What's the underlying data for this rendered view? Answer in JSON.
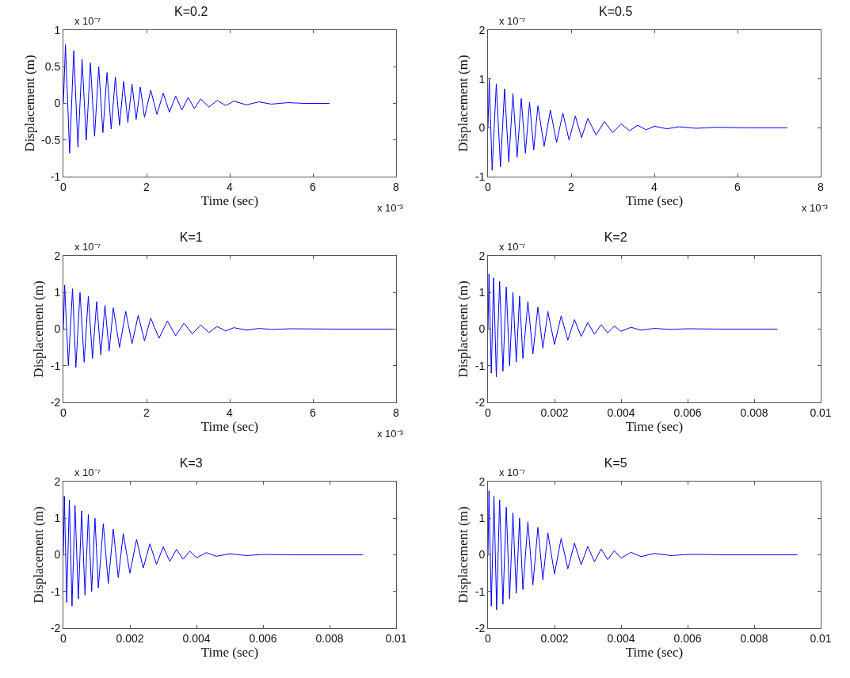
{
  "chart_data": [
    {
      "type": "line",
      "title": "K=0.2",
      "xlabel": "Time (sec)",
      "ylabel": "Displacement (m)",
      "annotations": [
        "x 10⁻⁷",
        "x 10⁻³"
      ],
      "xlim": [
        0,
        8
      ],
      "xticks": [
        0,
        2,
        4,
        6,
        8
      ],
      "ylim": [
        -1,
        1
      ],
      "yticks": [
        -1,
        -0.5,
        0,
        0.5,
        1
      ],
      "x": [
        0,
        0.05,
        0.15,
        0.25,
        0.35,
        0.45,
        0.55,
        0.65,
        0.75,
        0.85,
        0.95,
        1.05,
        1.15,
        1.25,
        1.35,
        1.45,
        1.55,
        1.65,
        1.75,
        1.85,
        1.95,
        2.1,
        2.25,
        2.4,
        2.55,
        2.7,
        2.85,
        3.0,
        3.15,
        3.3,
        3.5,
        3.7,
        3.9,
        4.1,
        4.4,
        4.7,
        5.0,
        5.4,
        5.8,
        6.4
      ],
      "series": [
        {
          "color": "#0000ff",
          "values": [
            0,
            0.8,
            -0.68,
            0.72,
            -0.6,
            0.6,
            -0.5,
            0.55,
            -0.45,
            0.5,
            -0.4,
            0.42,
            -0.35,
            0.36,
            -0.3,
            0.3,
            -0.26,
            0.26,
            -0.22,
            0.22,
            -0.19,
            0.18,
            -0.15,
            0.14,
            -0.12,
            0.1,
            -0.09,
            0.08,
            -0.07,
            0.06,
            -0.05,
            0.04,
            -0.03,
            0.03,
            -0.02,
            0.02,
            -0.01,
            0.01,
            0,
            0
          ]
        }
      ]
    },
    {
      "type": "line",
      "title": "K=0.5",
      "xlabel": "Time (sec)",
      "ylabel": "Displacement (m)",
      "annotations": [
        "x 10⁻⁷",
        "x 10⁻³"
      ],
      "xlim": [
        0,
        8
      ],
      "xticks": [
        0,
        2,
        4,
        6,
        8
      ],
      "ylim": [
        -1,
        2
      ],
      "yticks": [
        -1,
        0,
        1,
        2
      ],
      "x": [
        0,
        0.03,
        0.1,
        0.2,
        0.3,
        0.4,
        0.5,
        0.6,
        0.7,
        0.8,
        0.9,
        1.0,
        1.1,
        1.2,
        1.35,
        1.5,
        1.65,
        1.8,
        1.95,
        2.1,
        2.25,
        2.4,
        2.6,
        2.8,
        3.0,
        3.2,
        3.4,
        3.6,
        3.8,
        4.0,
        4.3,
        4.6,
        5.0,
        5.5,
        6.2,
        7.2
      ],
      "series": [
        {
          "color": "#0000ff",
          "values": [
            0,
            1.0,
            -0.87,
            0.9,
            -0.8,
            0.8,
            -0.7,
            0.7,
            -0.6,
            0.6,
            -0.52,
            0.52,
            -0.45,
            0.45,
            -0.38,
            0.36,
            -0.3,
            0.3,
            -0.25,
            0.24,
            -0.2,
            0.19,
            -0.15,
            0.13,
            -0.1,
            0.08,
            -0.06,
            0.05,
            -0.04,
            0.03,
            -0.02,
            0.02,
            -0.01,
            0.01,
            0,
            0
          ]
        }
      ]
    },
    {
      "type": "line",
      "title": "K=1",
      "xlabel": "Time (sec)",
      "ylabel": "Displacement (m)",
      "annotations": [
        "x 10⁻⁷",
        "x 10⁻³"
      ],
      "xlim": [
        0,
        8
      ],
      "xticks": [
        0,
        2,
        4,
        6,
        8
      ],
      "ylim": [
        -2,
        2
      ],
      "yticks": [
        -2,
        -1,
        0,
        1,
        2
      ],
      "x": [
        0,
        0.03,
        0.12,
        0.22,
        0.3,
        0.4,
        0.5,
        0.6,
        0.7,
        0.8,
        0.9,
        1.0,
        1.1,
        1.2,
        1.35,
        1.5,
        1.65,
        1.8,
        1.95,
        2.1,
        2.3,
        2.5,
        2.7,
        2.9,
        3.1,
        3.3,
        3.5,
        3.7,
        3.9,
        4.1,
        4.4,
        4.7,
        5.0,
        5.5,
        6.5,
        8
      ],
      "series": [
        {
          "color": "#0000ff",
          "values": [
            0,
            1.2,
            -1.0,
            1.1,
            -1.05,
            1.0,
            -0.9,
            0.9,
            -0.8,
            0.75,
            -0.7,
            0.65,
            -0.6,
            0.58,
            -0.5,
            0.48,
            -0.4,
            0.38,
            -0.32,
            0.3,
            -0.25,
            0.22,
            -0.18,
            0.16,
            -0.13,
            0.11,
            -0.09,
            0.07,
            -0.05,
            0.04,
            -0.03,
            0.02,
            -0.01,
            0.01,
            0,
            0
          ]
        }
      ]
    },
    {
      "type": "line",
      "title": "K=2",
      "xlabel": "Time (sec)",
      "ylabel": "Displacement (m)",
      "annotations": [
        "x 10⁻⁷"
      ],
      "xlim": [
        0,
        0.01
      ],
      "xticks": [
        0,
        0.002,
        0.004,
        0.006,
        0.008,
        0.01
      ],
      "ylim": [
        -2,
        2
      ],
      "yticks": [
        -2,
        -1,
        0,
        1,
        2
      ],
      "x": [
        0,
        3e-05,
        0.0001,
        0.00017,
        0.00025,
        0.00035,
        0.00045,
        0.00055,
        0.00065,
        0.00075,
        0.00085,
        0.00095,
        0.00105,
        0.0012,
        0.00135,
        0.0015,
        0.00165,
        0.0018,
        0.002,
        0.0022,
        0.0024,
        0.0026,
        0.0028,
        0.003,
        0.0032,
        0.0034,
        0.0036,
        0.0038,
        0.004,
        0.0043,
        0.0046,
        0.005,
        0.0055,
        0.006,
        0.007,
        0.0087
      ],
      "series": [
        {
          "color": "#0000ff",
          "values": [
            0,
            1.5,
            -1.2,
            1.4,
            -1.3,
            1.3,
            -1.15,
            1.15,
            -1.0,
            1.0,
            -0.9,
            0.9,
            -0.8,
            0.75,
            -0.68,
            0.6,
            -0.52,
            0.48,
            -0.42,
            0.36,
            -0.3,
            0.26,
            -0.2,
            0.18,
            -0.14,
            0.12,
            -0.1,
            0.08,
            -0.06,
            0.05,
            -0.03,
            0.02,
            -0.01,
            0.01,
            0,
            0
          ]
        }
      ]
    },
    {
      "type": "line",
      "title": "K=3",
      "xlabel": "Time (sec)",
      "ylabel": "Displacement (m)",
      "annotations": [
        "x 10⁻⁷"
      ],
      "xlim": [
        0,
        0.01
      ],
      "xticks": [
        0,
        0.002,
        0.004,
        0.006,
        0.008,
        0.01
      ],
      "ylim": [
        -2,
        2
      ],
      "yticks": [
        -2,
        -1,
        0,
        1,
        2
      ],
      "x": [
        0,
        3e-05,
        0.0001,
        0.00018,
        0.00026,
        0.00035,
        0.00045,
        0.00055,
        0.00065,
        0.00075,
        0.00085,
        0.00095,
        0.00105,
        0.0012,
        0.00135,
        0.0015,
        0.00165,
        0.0018,
        0.002,
        0.0022,
        0.0024,
        0.0026,
        0.0028,
        0.003,
        0.0032,
        0.0034,
        0.0036,
        0.0038,
        0.004,
        0.0043,
        0.0046,
        0.005,
        0.0055,
        0.006,
        0.007,
        0.009
      ],
      "series": [
        {
          "color": "#0000ff",
          "values": [
            0,
            1.6,
            -1.3,
            1.5,
            -1.4,
            1.35,
            -1.2,
            1.2,
            -1.1,
            1.1,
            -1.0,
            1.0,
            -0.9,
            0.85,
            -0.78,
            0.7,
            -0.62,
            0.58,
            -0.5,
            0.42,
            -0.36,
            0.3,
            -0.26,
            0.22,
            -0.18,
            0.15,
            -0.12,
            0.1,
            -0.08,
            0.06,
            -0.04,
            0.03,
            -0.02,
            0.01,
            0,
            0
          ]
        }
      ]
    },
    {
      "type": "line",
      "title": "K=5",
      "xlabel": "Time (sec)",
      "ylabel": "Displacement (m)",
      "annotations": [
        "x 10⁻⁷"
      ],
      "xlim": [
        0,
        0.01
      ],
      "xticks": [
        0,
        0.002,
        0.004,
        0.006,
        0.008,
        0.01
      ],
      "ylim": [
        -2,
        2
      ],
      "yticks": [
        -2,
        -1,
        0,
        1,
        2
      ],
      "x": [
        0,
        3e-05,
        0.0001,
        0.00018,
        0.00026,
        0.00035,
        0.00045,
        0.00055,
        0.00065,
        0.00075,
        0.00085,
        0.00095,
        0.00105,
        0.0012,
        0.00135,
        0.0015,
        0.00165,
        0.0018,
        0.002,
        0.0022,
        0.0024,
        0.0026,
        0.0028,
        0.003,
        0.0032,
        0.0034,
        0.0036,
        0.0038,
        0.004,
        0.0043,
        0.0046,
        0.005,
        0.0055,
        0.006,
        0.0065,
        0.007,
        0.0093
      ],
      "series": [
        {
          "color": "#0000ff",
          "values": [
            0,
            1.75,
            -1.4,
            1.6,
            -1.5,
            1.5,
            -1.35,
            1.3,
            -1.2,
            1.15,
            -1.05,
            1.0,
            -0.95,
            0.9,
            -0.82,
            0.75,
            -0.68,
            0.6,
            -0.52,
            0.45,
            -0.38,
            0.32,
            -0.27,
            0.23,
            -0.19,
            0.16,
            -0.13,
            0.11,
            -0.09,
            0.07,
            -0.05,
            0.04,
            -0.02,
            0.01,
            0.01,
            0,
            0
          ]
        }
      ]
    }
  ]
}
